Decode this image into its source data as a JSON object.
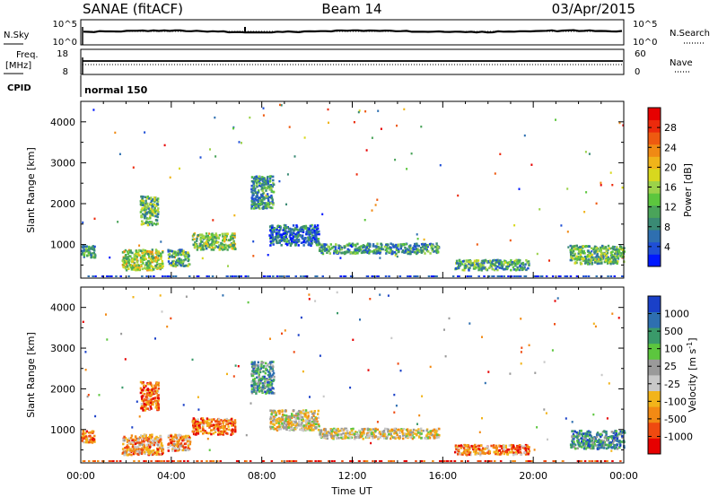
{
  "header": {
    "station": "SANAE (fitACF)",
    "beam": "Beam 14",
    "date": "03/Apr/2015"
  },
  "noise_panel": {
    "left_label": "N.Sky",
    "right_label": "N.Search",
    "left_ticks": [
      "10^5",
      "10^0"
    ],
    "right_ticks": [
      "10^5",
      "10^0"
    ]
  },
  "freq_panel": {
    "left_label_1": "Freq.",
    "left_label_2": "[MHz]",
    "right_label": "Nave",
    "left_ticks": [
      "18",
      "8"
    ],
    "right_ticks": [
      "60",
      "0"
    ]
  },
  "cpid": {
    "label": "CPID",
    "value": "normal 150"
  },
  "colors": {
    "power": [
      "#0018ff",
      "#1f4fd6",
      "#2e6fb0",
      "#3a8a74",
      "#4aa45a",
      "#5cc63e",
      "#9bd24a",
      "#d8d81e",
      "#f0b41a",
      "#f08a14",
      "#ee5a10",
      "#ec2a0c",
      "#e60000"
    ],
    "velocity": [
      "#e60000",
      "#ef4a10",
      "#f28a14",
      "#f2b41a",
      "#c8c8c8",
      "#9a9a9a",
      "#5cc63e",
      "#3a9a6a",
      "#2e6fb0",
      "#1a40c8"
    ]
  },
  "chart_data": [
    {
      "type": "heatmap",
      "name": "power",
      "ylabel": "Slant Range [km]",
      "yticks": [
        1000,
        2000,
        3000,
        4000
      ],
      "ylim": [
        180,
        4500
      ],
      "xlim": [
        0,
        24
      ],
      "colorbar_label": "Power [dB]",
      "colorbar_ticks": [
        4,
        8,
        12,
        16,
        20,
        24,
        28
      ],
      "colorbar_range": [
        0,
        32
      ],
      "features": [
        {
          "t0": 0.0,
          "t1": 0.6,
          "r0": 700,
          "r1": 1000,
          "level": 0.3
        },
        {
          "t0": 1.8,
          "t1": 3.6,
          "r0": 400,
          "r1": 900,
          "level": 0.5
        },
        {
          "t0": 2.6,
          "t1": 3.4,
          "r0": 1500,
          "r1": 2200,
          "level": 0.4
        },
        {
          "t0": 3.8,
          "t1": 4.8,
          "r0": 500,
          "r1": 900,
          "level": 0.35
        },
        {
          "t0": 4.9,
          "t1": 6.8,
          "r0": 900,
          "r1": 1300,
          "level": 0.45
        },
        {
          "t0": 7.5,
          "t1": 8.5,
          "r0": 1900,
          "r1": 2700,
          "level": 0.3
        },
        {
          "t0": 8.3,
          "t1": 10.5,
          "r0": 1000,
          "r1": 1500,
          "level": 0.2
        },
        {
          "t0": 10.5,
          "t1": 15.8,
          "r0": 800,
          "r1": 1050,
          "level": 0.3
        },
        {
          "t0": 16.5,
          "t1": 19.8,
          "r0": 400,
          "r1": 650,
          "level": 0.35
        },
        {
          "t0": 21.6,
          "t1": 24.0,
          "r0": 550,
          "r1": 1000,
          "level": 0.4
        }
      ]
    },
    {
      "type": "heatmap",
      "name": "velocity",
      "ylabel": "Slant Range [km]",
      "xlabel": "Time UT",
      "yticks": [
        1000,
        2000,
        3000,
        4000
      ],
      "ylim": [
        180,
        4500
      ],
      "xlim": [
        0,
        24
      ],
      "xticks": [
        "00:00",
        "04:00",
        "08:00",
        "12:00",
        "16:00",
        "20:00",
        "00:00"
      ],
      "colorbar_label": "Velocity [m s^-1]",
      "colorbar_ticks": [
        "1000",
        "500",
        "100",
        "25",
        "-25",
        "-100",
        "-500",
        "-1000"
      ],
      "features": [
        {
          "t0": 0.0,
          "t1": 0.6,
          "r0": 700,
          "r1": 1000,
          "level": 0.2
        },
        {
          "t0": 1.8,
          "t1": 3.6,
          "r0": 400,
          "r1": 900,
          "level": 0.3
        },
        {
          "t0": 2.6,
          "t1": 3.4,
          "r0": 1500,
          "r1": 2200,
          "level": 0.2
        },
        {
          "t0": 3.8,
          "t1": 4.8,
          "r0": 500,
          "r1": 900,
          "level": 0.3
        },
        {
          "t0": 4.9,
          "t1": 6.8,
          "r0": 900,
          "r1": 1300,
          "level": 0.2
        },
        {
          "t0": 7.5,
          "t1": 8.5,
          "r0": 1900,
          "r1": 2700,
          "level": 0.7
        },
        {
          "t0": 8.3,
          "t1": 10.5,
          "r0": 1000,
          "r1": 1500,
          "level": 0.45
        },
        {
          "t0": 10.5,
          "t1": 15.8,
          "r0": 800,
          "r1": 1050,
          "level": 0.45
        },
        {
          "t0": 16.5,
          "t1": 19.8,
          "r0": 400,
          "r1": 650,
          "level": 0.25
        },
        {
          "t0": 21.6,
          "t1": 24.0,
          "r0": 550,
          "r1": 1000,
          "level": 0.75
        }
      ]
    }
  ]
}
